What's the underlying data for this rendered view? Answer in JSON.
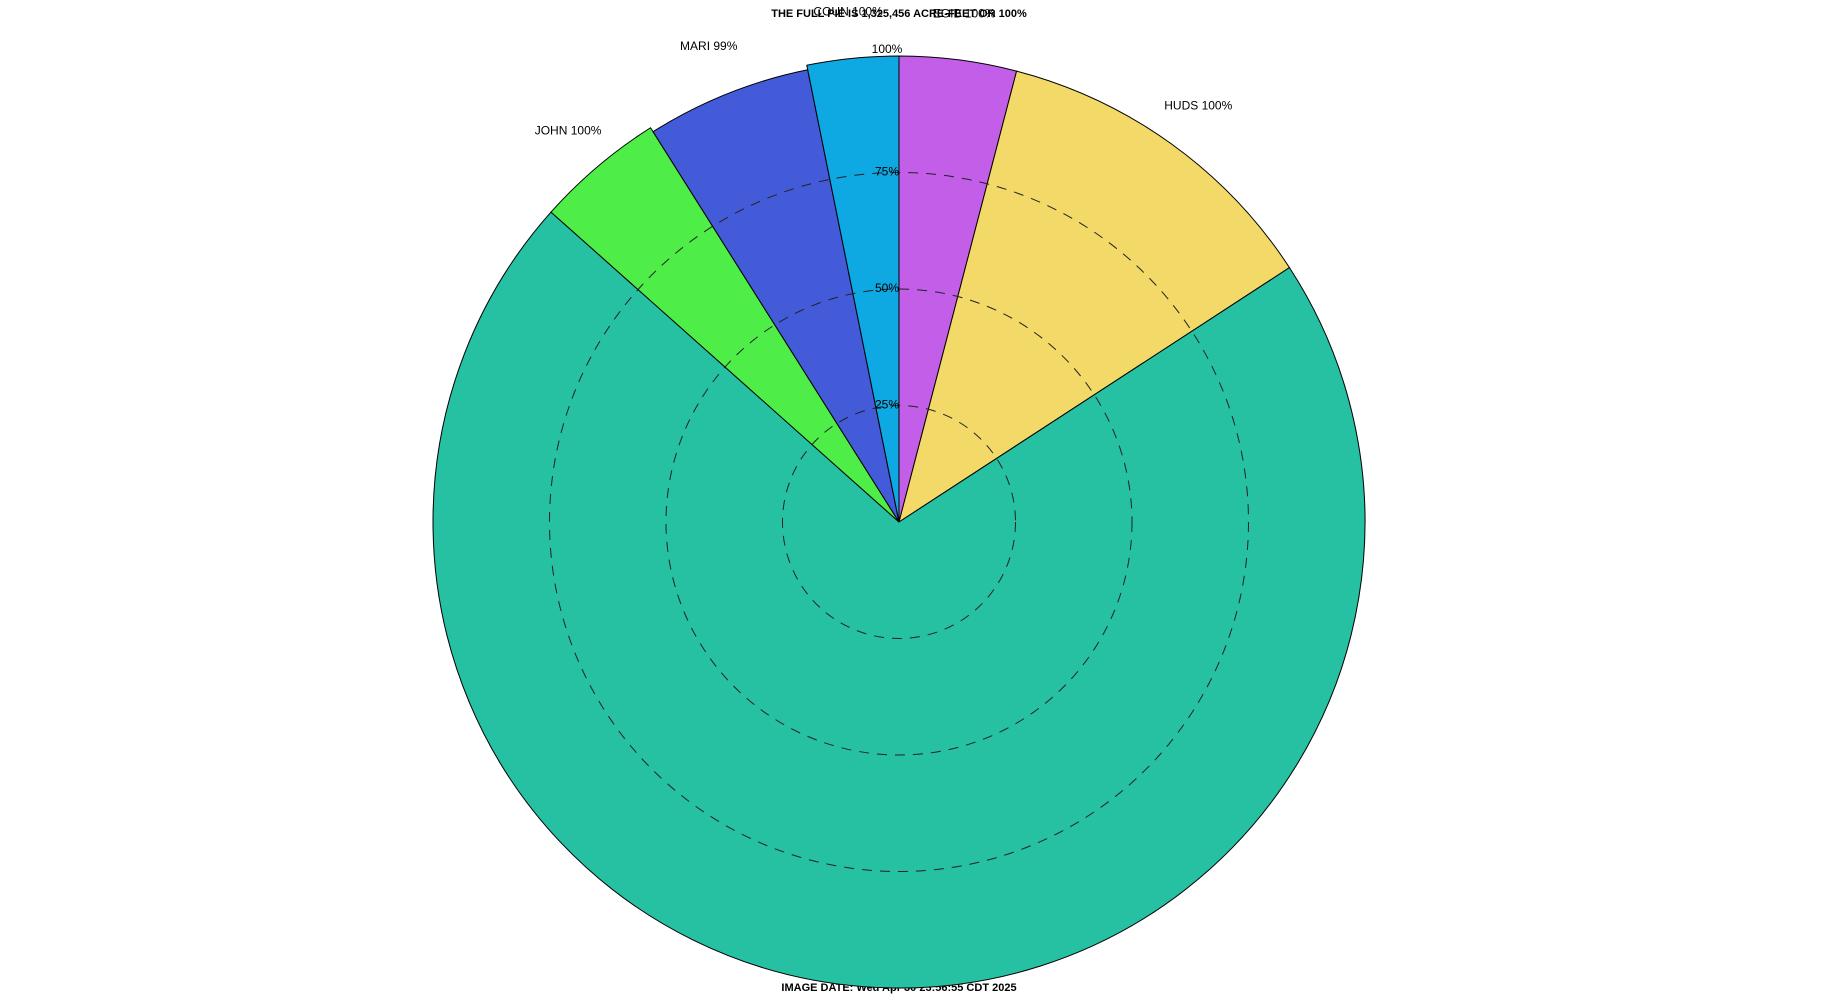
{
  "chart_data": {
    "type": "pie",
    "title": "THE FULL PIE IS 1,325,456 ACRE-FEET OR 100%",
    "footer": "IMAGE DATE: Wed Apr 30 23:56:55 CDT 2025",
    "categories": [
      "EGIB 100%",
      "HUDS 100%",
      null,
      "JOHN 100%",
      "MARI 99%",
      "COUN 100%"
    ],
    "values": [
      4.06,
      11.75,
      70.77,
      4.47,
      5.78,
      3.17
    ],
    "fill": [
      100,
      100,
      100,
      100,
      99,
      100
    ],
    "colors": [
      "#c35ee8",
      "#f3da68",
      "#26c0a2",
      "#4fed48",
      "#435bd8",
      "#0ea8e3"
    ],
    "rlim": [
      0,
      100
    ],
    "rticks": [
      {
        "value": 25,
        "label": "25%"
      },
      {
        "value": 50,
        "label": "50%"
      },
      {
        "value": 75,
        "label": "75%"
      },
      {
        "value": 100,
        "label": "100%"
      }
    ]
  }
}
